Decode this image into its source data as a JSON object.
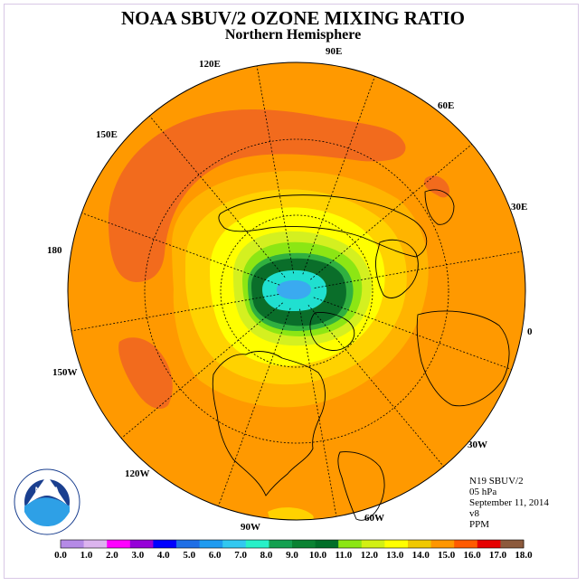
{
  "title": "NOAA SBUV/2 OZONE MIXING RATIO",
  "subtitle": "Northern Hemisphere",
  "longitude_labels": {
    "e90": "90E",
    "e60": "60E",
    "e30": "30E",
    "zero": "0",
    "w30": "30W",
    "w60": "60W",
    "w90": "90W",
    "w120": "120W",
    "w150": "150W",
    "lon180": "180",
    "e150": "150E",
    "e120": "120E"
  },
  "info": {
    "instrument": "N19 SBUV/2",
    "level": "05 hPa",
    "date": "September 11, 2014",
    "version": "v8",
    "units": "PPM"
  },
  "colorbar": {
    "labels": [
      "0.0",
      "1.0",
      "2.0",
      "3.0",
      "4.0",
      "5.0",
      "6.0",
      "7.0",
      "8.0",
      "9.0",
      "10.0",
      "11.0",
      "12.0",
      "13.0",
      "14.0",
      "15.0",
      "16.0",
      "17.0",
      "18.0"
    ],
    "colors": [
      "#b58ae6",
      "#dcb4ee",
      "#ff00ff",
      "#9600d8",
      "#0000ff",
      "#1e6ee6",
      "#1e9bf0",
      "#32c8f0",
      "#28f0c8",
      "#14a050",
      "#0a8232",
      "#006e28",
      "#8ce614",
      "#d2f014",
      "#ffff00",
      "#f0c800",
      "#ff9600",
      "#ff5a00",
      "#e60000",
      "#8c5a3c"
    ]
  },
  "field_colors": {
    "background": "#ff9900",
    "orange_red": "#f26b1d",
    "light_orange": "#ffb400",
    "gold": "#ffd200",
    "yellow": "#ffff00",
    "yellow_green": "#d4f020",
    "green": "#8ce614",
    "mid_green": "#30b040",
    "dark_green": "#0a6e2a",
    "aqua": "#20e0d0",
    "blue_core": "#3aaaf0"
  },
  "logo": {
    "text": "NOAA",
    "ring_text": "NATIONAL OCEANIC AND ATMOSPHERIC ADMINISTRATION · U.S. DEPARTMENT OF COMMERCE"
  }
}
